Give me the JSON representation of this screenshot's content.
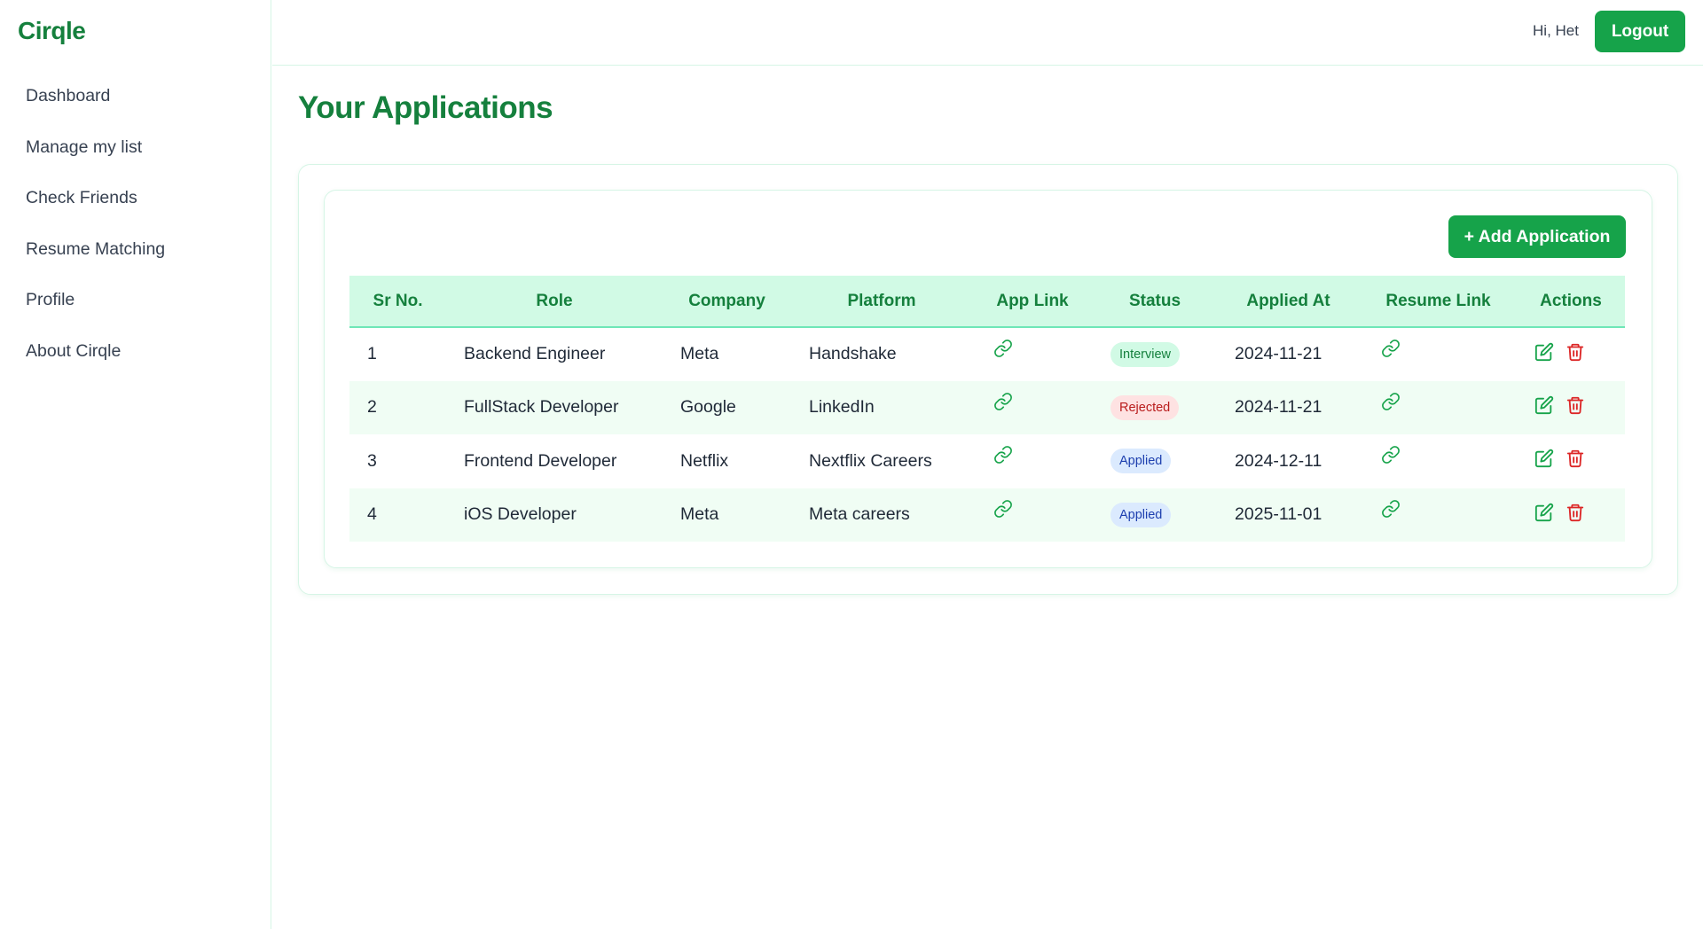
{
  "brand": "Cirqle",
  "nav": [
    {
      "label": "Dashboard"
    },
    {
      "label": "Manage my list"
    },
    {
      "label": "Check Friends"
    },
    {
      "label": "Resume Matching"
    },
    {
      "label": "Profile"
    },
    {
      "label": "About Cirqle"
    }
  ],
  "header": {
    "greeting": "Hi, Het",
    "logout_label": "Logout"
  },
  "page": {
    "title": "Your Applications",
    "add_button_label": "+ Add Application"
  },
  "table": {
    "columns": [
      "Sr No.",
      "Role",
      "Company",
      "Platform",
      "App Link",
      "Status",
      "Applied At",
      "Resume Link",
      "Actions"
    ],
    "rows": [
      {
        "sr": "1",
        "role": "Backend Engineer",
        "company": "Meta",
        "platform": "Handshake",
        "status": "Interview",
        "status_kind": "interview",
        "applied_at": "2024-11-21"
      },
      {
        "sr": "2",
        "role": "FullStack Developer",
        "company": "Google",
        "platform": "LinkedIn",
        "status": "Rejected",
        "status_kind": "rejected",
        "applied_at": "2024-11-21"
      },
      {
        "sr": "3",
        "role": "Frontend Developer",
        "company": "Netflix",
        "platform": "Nextflix Careers",
        "status": "Applied",
        "status_kind": "applied",
        "applied_at": "2024-12-11"
      },
      {
        "sr": "4",
        "role": "iOS Developer",
        "company": "Meta",
        "platform": "Meta careers",
        "status": "Applied",
        "status_kind": "applied",
        "applied_at": "2025-11-01"
      }
    ]
  },
  "icons": {
    "app_link": "link-icon",
    "resume_link": "link-icon",
    "edit": "edit-icon",
    "delete": "trash-icon"
  },
  "colors": {
    "brand_green": "#15803d",
    "button_green": "#16a34a",
    "header_bg": "#d1fae5",
    "delete_red": "#dc2626"
  }
}
